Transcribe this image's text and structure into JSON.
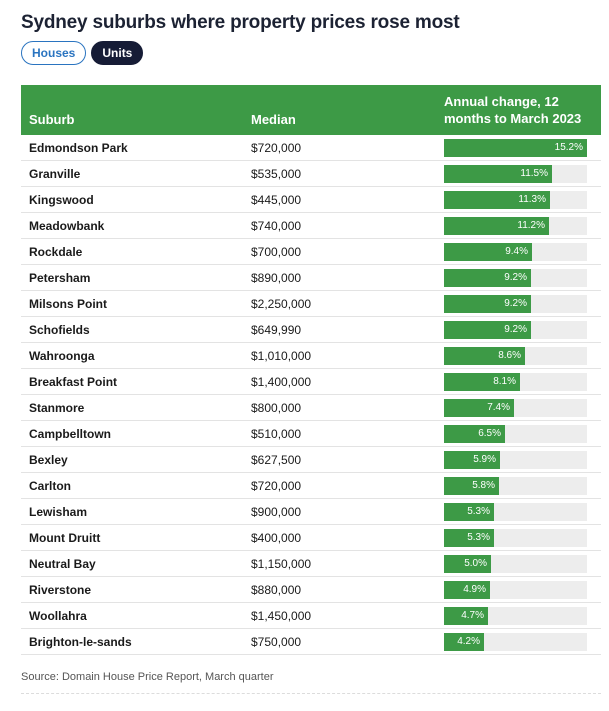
{
  "title": "Sydney suburbs where property prices rose most",
  "toggles": [
    {
      "label": "Houses",
      "active": false
    },
    {
      "label": "Units",
      "active": true
    }
  ],
  "source": "Source: Domain House Price Report, March quarter",
  "colors": {
    "accent": "#3d9a46",
    "track": "#ededed",
    "active_toggle": "#161c36",
    "inactive_toggle": "#2a74c0"
  },
  "chart_data": {
    "type": "table",
    "columns": [
      "Suburb",
      "Median",
      "Annual change, 12 months to March 2023"
    ],
    "max_value": 15.2,
    "rows": [
      {
        "suburb": "Edmondson Park",
        "median": "$720,000",
        "change": 15.2,
        "change_label": "15.2%"
      },
      {
        "suburb": "Granville",
        "median": "$535,000",
        "change": 11.5,
        "change_label": "11.5%"
      },
      {
        "suburb": "Kingswood",
        "median": "$445,000",
        "change": 11.3,
        "change_label": "11.3%"
      },
      {
        "suburb": "Meadowbank",
        "median": "$740,000",
        "change": 11.2,
        "change_label": "11.2%"
      },
      {
        "suburb": "Rockdale",
        "median": "$700,000",
        "change": 9.4,
        "change_label": "9.4%"
      },
      {
        "suburb": "Petersham",
        "median": "$890,000",
        "change": 9.2,
        "change_label": "9.2%"
      },
      {
        "suburb": "Milsons Point",
        "median": "$2,250,000",
        "change": 9.2,
        "change_label": "9.2%"
      },
      {
        "suburb": "Schofields",
        "median": "$649,990",
        "change": 9.2,
        "change_label": "9.2%"
      },
      {
        "suburb": "Wahroonga",
        "median": "$1,010,000",
        "change": 8.6,
        "change_label": "8.6%"
      },
      {
        "suburb": "Breakfast Point",
        "median": "$1,400,000",
        "change": 8.1,
        "change_label": "8.1%"
      },
      {
        "suburb": "Stanmore",
        "median": "$800,000",
        "change": 7.4,
        "change_label": "7.4%"
      },
      {
        "suburb": "Campbelltown",
        "median": "$510,000",
        "change": 6.5,
        "change_label": "6.5%"
      },
      {
        "suburb": "Bexley",
        "median": "$627,500",
        "change": 5.9,
        "change_label": "5.9%"
      },
      {
        "suburb": "Carlton",
        "median": "$720,000",
        "change": 5.8,
        "change_label": "5.8%"
      },
      {
        "suburb": "Lewisham",
        "median": "$900,000",
        "change": 5.3,
        "change_label": "5.3%"
      },
      {
        "suburb": "Mount Druitt",
        "median": "$400,000",
        "change": 5.3,
        "change_label": "5.3%"
      },
      {
        "suburb": "Neutral Bay",
        "median": "$1,150,000",
        "change": 5.0,
        "change_label": "5.0%"
      },
      {
        "suburb": "Riverstone",
        "median": "$880,000",
        "change": 4.9,
        "change_label": "4.9%"
      },
      {
        "suburb": "Woollahra",
        "median": "$1,450,000",
        "change": 4.7,
        "change_label": "4.7%"
      },
      {
        "suburb": "Brighton-le-sands",
        "median": "$750,000",
        "change": 4.2,
        "change_label": "4.2%"
      }
    ]
  }
}
